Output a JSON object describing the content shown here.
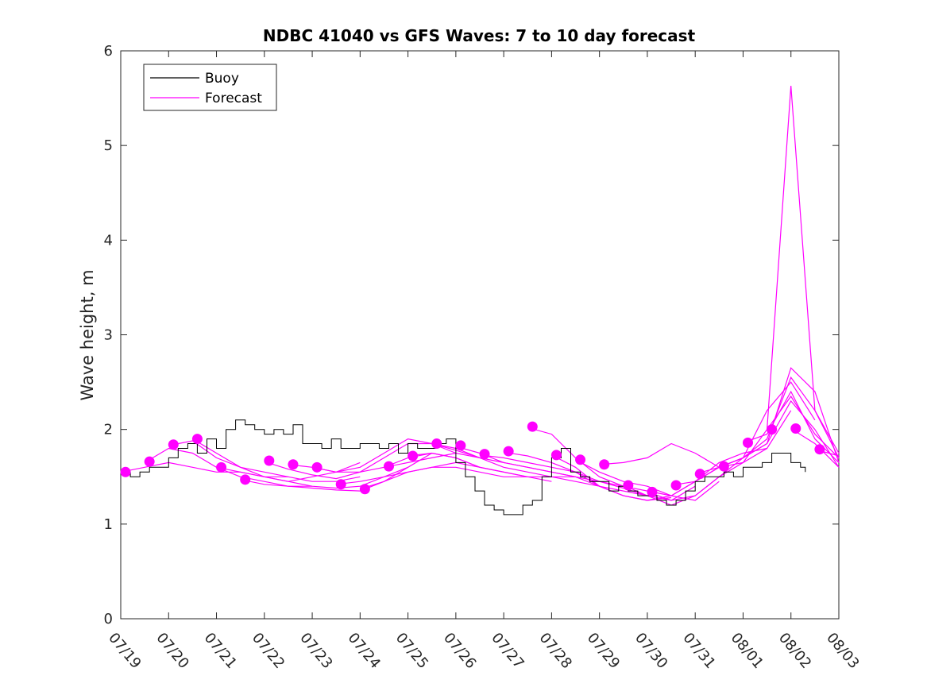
{
  "chart_data": {
    "type": "line",
    "title": "NDBC 41040 vs GFS Waves: 7 to 10 day forecast",
    "xlabel": "",
    "ylabel": "Wave height, m",
    "x_tick_labels": [
      "07/19",
      "07/20",
      "07/21",
      "07/22",
      "07/23",
      "07/24",
      "07/25",
      "07/26",
      "07/27",
      "07/28",
      "07/29",
      "07/30",
      "07/31",
      "08/01",
      "08/02",
      "08/03"
    ],
    "y_tick_labels": [
      "0",
      "1",
      "2",
      "3",
      "4",
      "5",
      "6"
    ],
    "xlim_days": [
      0,
      15
    ],
    "ylim": [
      0,
      6
    ],
    "grid": false,
    "legend_position": "top-left",
    "colors": {
      "buoy": "#000000",
      "forecast": "#ff00ff"
    },
    "series": [
      {
        "name": "Buoy",
        "kind": "line",
        "x_days": [
          0.0,
          0.2,
          0.4,
          0.6,
          0.8,
          1.0,
          1.2,
          1.4,
          1.6,
          1.8,
          2.0,
          2.2,
          2.4,
          2.6,
          2.8,
          3.0,
          3.2,
          3.4,
          3.6,
          3.8,
          4.0,
          4.2,
          4.4,
          4.6,
          4.8,
          5.0,
          5.2,
          5.4,
          5.6,
          5.8,
          6.0,
          6.2,
          6.4,
          6.6,
          6.8,
          7.0,
          7.2,
          7.4,
          7.6,
          7.8,
          8.0,
          8.2,
          8.4,
          8.6,
          8.8,
          9.0,
          9.2,
          9.4,
          9.6,
          9.8,
          10.0,
          10.2,
          10.4,
          10.6,
          10.8,
          11.0,
          11.2,
          11.4,
          11.6,
          11.8,
          12.0,
          12.2,
          12.4,
          12.6,
          12.8,
          13.0,
          13.2,
          13.4,
          13.6,
          13.8,
          14.0,
          14.2,
          14.3
        ],
        "y": [
          1.55,
          1.5,
          1.55,
          1.6,
          1.6,
          1.7,
          1.8,
          1.85,
          1.75,
          1.9,
          1.8,
          2.0,
          2.1,
          2.05,
          2.0,
          1.95,
          2.0,
          1.95,
          2.05,
          1.85,
          1.85,
          1.8,
          1.9,
          1.8,
          1.8,
          1.85,
          1.85,
          1.8,
          1.85,
          1.75,
          1.85,
          1.8,
          1.8,
          1.85,
          1.9,
          1.65,
          1.5,
          1.35,
          1.2,
          1.15,
          1.1,
          1.1,
          1.2,
          1.25,
          1.5,
          1.7,
          1.8,
          1.55,
          1.5,
          1.45,
          1.45,
          1.35,
          1.4,
          1.35,
          1.3,
          1.3,
          1.25,
          1.2,
          1.25,
          1.35,
          1.45,
          1.5,
          1.5,
          1.55,
          1.5,
          1.6,
          1.6,
          1.65,
          1.75,
          1.75,
          1.65,
          1.6,
          1.55
        ]
      },
      {
        "name": "Forecast",
        "kind": "line-group",
        "lines": [
          {
            "x_days": [
              0.0,
              0.5,
              1.0,
              1.5,
              2.0,
              2.5,
              3.0,
              3.5
            ],
            "y": [
              1.55,
              1.6,
              1.65,
              1.6,
              1.55,
              1.55,
              1.5,
              1.5
            ]
          },
          {
            "x_days": [
              0.5,
              1.0,
              1.5,
              2.0,
              2.5,
              3.0,
              3.5,
              4.0
            ],
            "y": [
              1.65,
              1.8,
              1.75,
              1.6,
              1.5,
              1.45,
              1.4,
              1.4
            ]
          },
          {
            "x_days": [
              1.0,
              1.5,
              2.0,
              2.5,
              3.0,
              3.5,
              4.0,
              4.5,
              5.0
            ],
            "y": [
              1.83,
              1.88,
              1.7,
              1.6,
              1.55,
              1.5,
              1.45,
              1.45,
              1.5
            ]
          },
          {
            "x_days": [
              1.5,
              2.0,
              2.5,
              3.0,
              3.5,
              4.0,
              4.5,
              5.0
            ],
            "y": [
              1.9,
              1.75,
              1.6,
              1.5,
              1.45,
              1.5,
              1.55,
              1.65
            ]
          },
          {
            "x_days": [
              2.0,
              2.5,
              3.0,
              3.5,
              4.0,
              4.5,
              5.0,
              5.5,
              6.0
            ],
            "y": [
              1.6,
              1.55,
              1.5,
              1.45,
              1.4,
              1.38,
              1.4,
              1.5,
              1.6
            ]
          },
          {
            "x_days": [
              2.5,
              3.0,
              3.5,
              4.0,
              4.5,
              5.0,
              5.5,
              6.0,
              6.5
            ],
            "y": [
              1.47,
              1.42,
              1.4,
              1.38,
              1.36,
              1.35,
              1.45,
              1.6,
              1.75
            ]
          },
          {
            "x_days": [
              3.0,
              3.5,
              4.0,
              4.5,
              5.0,
              5.5,
              6.0,
              6.5,
              7.0
            ],
            "y": [
              1.66,
              1.58,
              1.52,
              1.48,
              1.55,
              1.7,
              1.85,
              1.85,
              1.75
            ]
          },
          {
            "x_days": [
              3.5,
              4.0,
              4.5,
              5.0,
              5.5,
              6.0,
              6.5,
              7.0,
              7.5
            ],
            "y": [
              1.63,
              1.6,
              1.55,
              1.6,
              1.75,
              1.9,
              1.85,
              1.8,
              1.7
            ]
          },
          {
            "x_days": [
              4.0,
              4.5,
              5.0,
              5.5,
              6.0,
              6.5,
              7.0,
              7.5,
              8.0
            ],
            "y": [
              1.6,
              1.55,
              1.55,
              1.6,
              1.7,
              1.75,
              1.7,
              1.6,
              1.55
            ]
          },
          {
            "x_days": [
              4.5,
              5.0,
              5.5,
              6.0,
              6.5,
              7.0,
              7.5,
              8.0,
              8.5
            ],
            "y": [
              1.42,
              1.45,
              1.5,
              1.55,
              1.6,
              1.6,
              1.55,
              1.5,
              1.5
            ]
          },
          {
            "x_days": [
              5.0,
              5.5,
              6.0,
              6.5,
              7.0,
              7.5,
              8.0,
              8.5,
              9.0
            ],
            "y": [
              1.37,
              1.45,
              1.55,
              1.6,
              1.65,
              1.6,
              1.55,
              1.5,
              1.45
            ]
          },
          {
            "x_days": [
              5.5,
              6.0,
              6.5,
              7.0,
              7.5,
              8.0,
              8.5,
              9.0,
              9.5
            ],
            "y": [
              1.6,
              1.65,
              1.7,
              1.75,
              1.7,
              1.6,
              1.55,
              1.5,
              1.5
            ]
          },
          {
            "x_days": [
              6.0,
              6.5,
              7.0,
              7.5,
              8.0,
              8.5,
              9.0,
              9.5,
              10.0
            ],
            "y": [
              1.72,
              1.75,
              1.7,
              1.6,
              1.55,
              1.5,
              1.5,
              1.45,
              1.4
            ]
          },
          {
            "x_days": [
              6.5,
              7.0,
              7.5,
              8.0,
              8.5,
              9.0,
              9.5,
              10.0,
              10.5
            ],
            "y": [
              1.85,
              1.78,
              1.7,
              1.65,
              1.6,
              1.55,
              1.5,
              1.45,
              1.4
            ]
          },
          {
            "x_days": [
              7.0,
              7.5,
              8.0,
              8.5,
              9.0,
              9.5,
              10.0,
              10.5,
              11.0
            ],
            "y": [
              1.82,
              1.75,
              1.65,
              1.6,
              1.55,
              1.5,
              1.4,
              1.35,
              1.3
            ]
          },
          {
            "x_days": [
              7.5,
              8.0,
              8.5,
              9.0,
              9.5,
              10.0,
              10.5,
              11.0,
              11.5
            ],
            "y": [
              1.73,
              1.7,
              1.65,
              1.6,
              1.55,
              1.4,
              1.3,
              1.25,
              1.28
            ]
          },
          {
            "x_days": [
              8.0,
              8.5,
              9.0,
              9.5,
              10.0,
              10.5,
              11.0,
              11.5,
              12.0
            ],
            "y": [
              1.76,
              1.72,
              1.65,
              1.55,
              1.45,
              1.38,
              1.3,
              1.25,
              1.4
            ]
          },
          {
            "x_days": [
              8.5,
              9.0,
              9.5,
              10.0,
              10.5,
              11.0,
              11.5,
              12.0,
              12.5
            ],
            "y": [
              2.02,
              1.95,
              1.7,
              1.5,
              1.4,
              1.35,
              1.3,
              1.25,
              1.45
            ]
          },
          {
            "x_days": [
              9.0,
              9.5,
              10.0,
              10.5,
              11.0,
              11.5,
              12.0,
              12.5,
              13.0
            ],
            "y": [
              1.73,
              1.6,
              1.4,
              1.3,
              1.25,
              1.3,
              1.45,
              1.6,
              1.7
            ]
          },
          {
            "x_days": [
              9.5,
              10.0,
              10.5,
              11.0,
              11.5,
              12.0,
              12.5,
              13.0,
              13.5
            ],
            "y": [
              1.68,
              1.55,
              1.45,
              1.4,
              1.3,
              1.45,
              1.65,
              1.75,
              1.8
            ]
          },
          {
            "x_days": [
              10.0,
              10.5,
              11.0,
              11.5,
              12.0,
              12.5,
              13.0,
              13.5,
              14.0
            ],
            "y": [
              1.63,
              1.65,
              1.7,
              1.85,
              1.75,
              1.6,
              1.65,
              1.8,
              2.2
            ]
          },
          {
            "x_days": [
              10.5,
              11.0,
              11.5,
              12.0,
              12.5,
              13.0,
              13.5,
              14.0,
              14.5
            ],
            "y": [
              1.41,
              1.3,
              1.2,
              1.3,
              1.5,
              1.7,
              2.2,
              2.5,
              2.1
            ]
          },
          {
            "x_days": [
              11.0,
              11.5,
              12.0,
              12.5,
              13.0,
              13.5,
              14.0,
              14.5,
              15.0
            ],
            "y": [
              1.34,
              1.25,
              1.3,
              1.5,
              1.65,
              2.0,
              5.63,
              2.2,
              1.7
            ]
          },
          {
            "x_days": [
              11.5,
              12.0,
              12.5,
              13.0,
              13.5,
              14.0,
              14.5,
              15.0
            ],
            "y": [
              1.41,
              1.45,
              1.6,
              1.7,
              1.9,
              2.55,
              2.2,
              1.75
            ]
          },
          {
            "x_days": [
              12.0,
              12.5,
              13.0,
              13.5,
              14.0,
              14.5,
              15.0
            ],
            "y": [
              1.53,
              1.6,
              1.7,
              1.85,
              2.65,
              2.4,
              1.65
            ]
          },
          {
            "x_days": [
              12.5,
              13.0,
              13.5,
              14.0,
              14.5,
              15.0
            ],
            "y": [
              1.6,
              1.7,
              1.85,
              2.3,
              2.0,
              1.6
            ]
          },
          {
            "x_days": [
              13.0,
              13.5,
              14.0,
              14.5,
              15.0
            ],
            "y": [
              1.86,
              1.95,
              2.4,
              1.9,
              1.65
            ]
          },
          {
            "x_days": [
              13.5,
              14.0,
              14.5,
              15.0
            ],
            "y": [
              2.0,
              2.35,
              1.95,
              1.7
            ]
          },
          {
            "x_days": [
              14.0,
              14.5,
              15.0
            ],
            "y": [
              2.01,
              1.85,
              1.6
            ]
          },
          {
            "x_days": [
              14.5,
              15.0
            ],
            "y": [
              1.79,
              1.72
            ]
          }
        ]
      },
      {
        "name": "",
        "kind": "markers",
        "x_days": [
          0.1,
          0.6,
          1.1,
          1.6,
          2.1,
          2.6,
          3.1,
          3.6,
          4.1,
          4.6,
          5.1,
          5.6,
          6.1,
          6.6,
          7.1,
          7.6,
          8.1,
          8.6,
          9.1,
          9.6,
          10.1,
          10.6,
          11.1,
          11.6,
          12.1,
          12.6,
          13.1,
          13.6,
          14.1,
          14.6
        ],
        "y": [
          1.55,
          1.66,
          1.84,
          1.9,
          1.6,
          1.47,
          1.67,
          1.63,
          1.6,
          1.42,
          1.37,
          1.61,
          1.72,
          1.85,
          1.83,
          1.74,
          1.77,
          2.03,
          1.73,
          1.68,
          1.63,
          1.41,
          1.34,
          1.41,
          1.53,
          1.61,
          1.86,
          2.0,
          2.01,
          1.79
        ]
      }
    ]
  }
}
